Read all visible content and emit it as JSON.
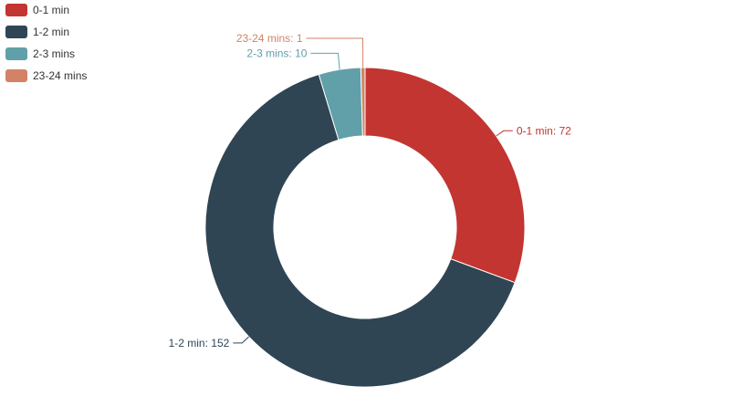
{
  "chart_data": {
    "type": "pie",
    "variant": "donut",
    "categories": [
      "0-1 min",
      "1-2 min",
      "2-3 mins",
      "23-24 mins"
    ],
    "values": [
      72,
      152,
      10,
      1
    ],
    "colors": [
      "#c23531",
      "#2f4554",
      "#61a0a8",
      "#d48265"
    ],
    "data_labels": [
      "0-1 min: 72",
      "1-2 min: 152",
      "2-3 mins: 10",
      "23-24 mins: 1"
    ],
    "legend_position": "top-left",
    "start_angle": "12 o'clock, clockwise"
  }
}
